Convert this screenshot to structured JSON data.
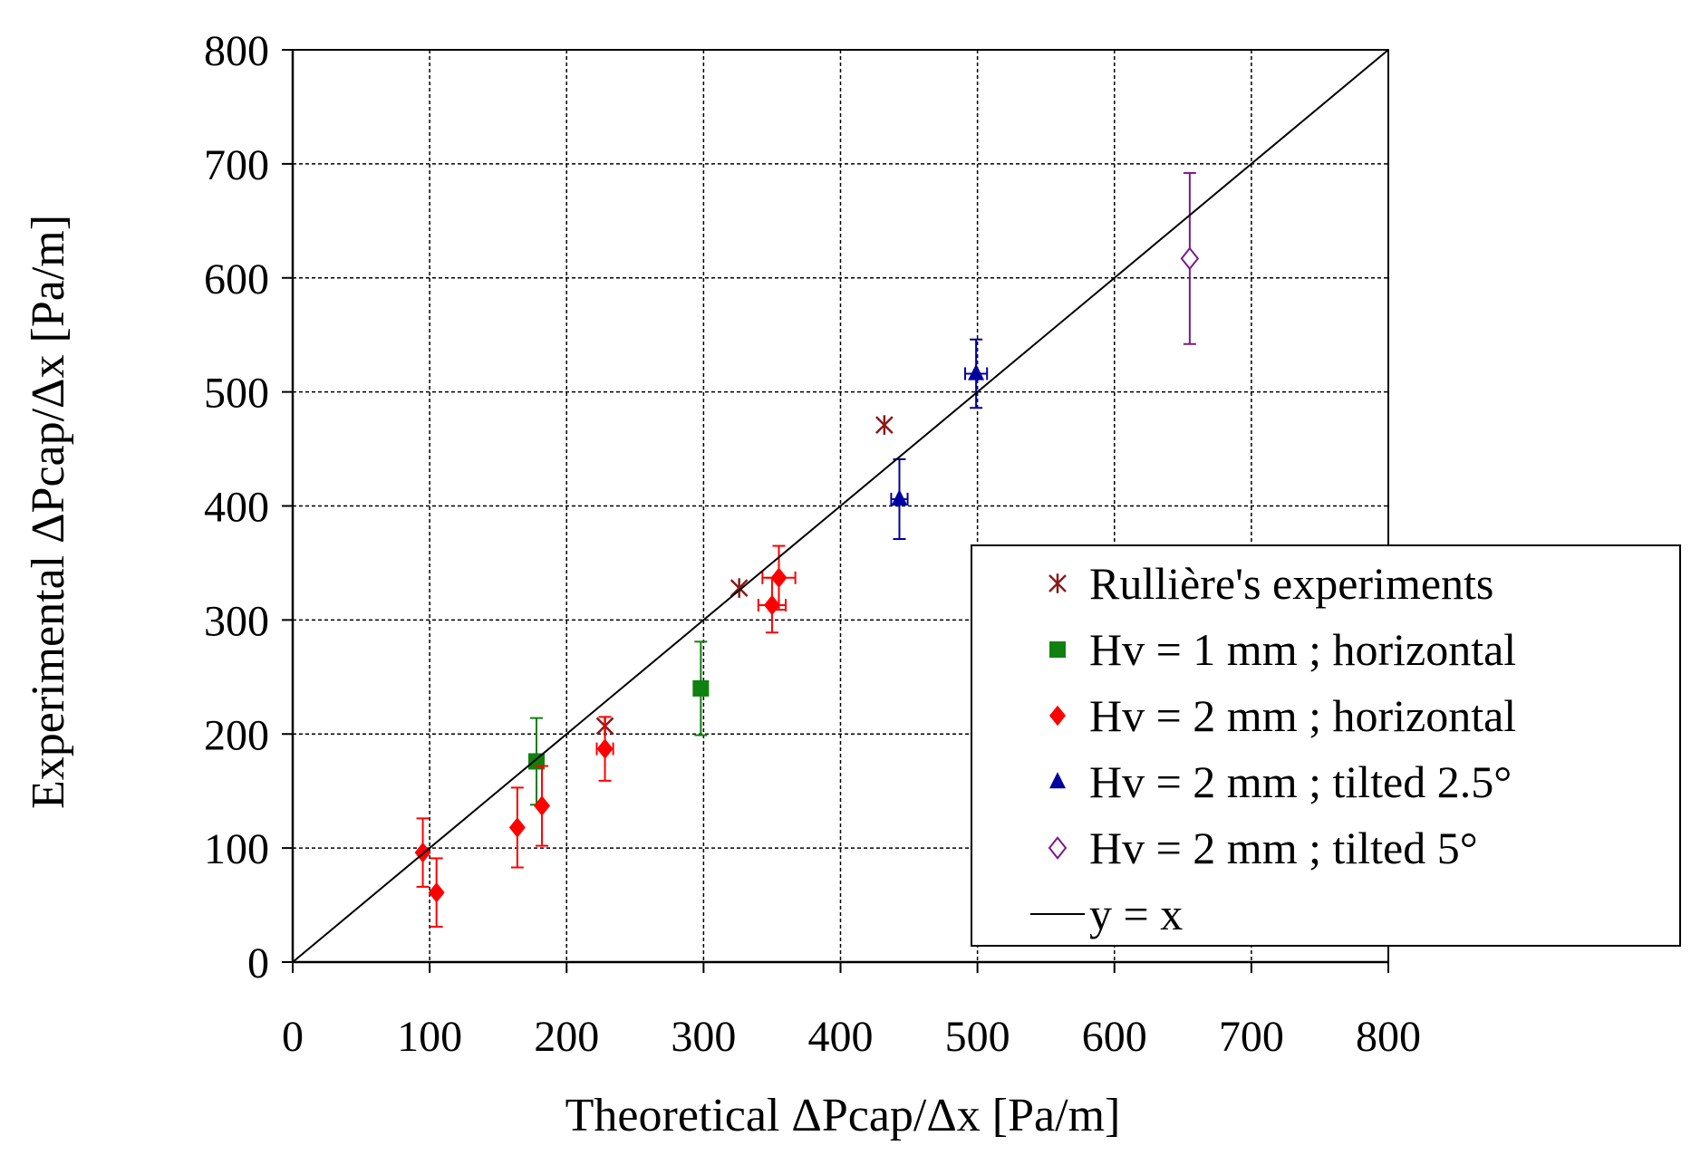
{
  "chart_data": {
    "type": "scatter",
    "title": "",
    "xlabel": "Theoretical ΔPcap/Δx [Pa/m]",
    "ylabel": "Experimental ΔPcap/Δx [Pa/m]",
    "xlim": [
      0,
      800
    ],
    "ylim": [
      0,
      800
    ],
    "x_ticks": [
      "0",
      "100",
      "200",
      "300",
      "400",
      "500",
      "600",
      "700",
      "800"
    ],
    "y_ticks": [
      "0",
      "100",
      "200",
      "300",
      "400",
      "500",
      "600",
      "700",
      "800"
    ],
    "grid": true,
    "legend_position": "right",
    "series": [
      {
        "name": "Rullière's experiments",
        "marker": "asterisk",
        "color": "#8b1a1a",
        "points": [
          {
            "x": 228,
            "y": 207
          },
          {
            "x": 326,
            "y": 328
          },
          {
            "x": 432,
            "y": 471
          }
        ]
      },
      {
        "name": "Hv = 1 mm ; horizontal",
        "marker": "square",
        "color": "#108010",
        "points": [
          {
            "x": 178,
            "y": 176,
            "yerr": 38,
            "xerr": 0
          },
          {
            "x": 298,
            "y": 240,
            "yerr": 41,
            "xerr": 5
          }
        ]
      },
      {
        "name": "Hv = 2 mm ; horizontal",
        "marker": "diamond",
        "color": "#ff0000",
        "points": [
          {
            "x": 95,
            "y": 96,
            "yerr": 30,
            "xerr": 0
          },
          {
            "x": 105,
            "y": 61,
            "yerr": 30,
            "xerr": 0
          },
          {
            "x": 164,
            "y": 118,
            "yerr": 35,
            "xerr": 0
          },
          {
            "x": 182,
            "y": 137,
            "yerr": 35,
            "xerr": 0
          },
          {
            "x": 228,
            "y": 187,
            "yerr": 28,
            "xerr": 6
          },
          {
            "x": 350,
            "y": 313,
            "yerr": 24,
            "xerr": 10
          },
          {
            "x": 355,
            "y": 337,
            "yerr": 28,
            "xerr": 12
          }
        ]
      },
      {
        "name": "Hv = 2 mm ; tilted 2.5°",
        "marker": "triangle",
        "color": "#0000a0",
        "points": [
          {
            "x": 443,
            "y": 406,
            "yerr": 35,
            "xerr": 6
          },
          {
            "x": 499,
            "y": 516,
            "yerr": 30,
            "xerr": 8
          }
        ]
      },
      {
        "name": "Hv = 2 mm ; tilted 5°",
        "marker": "diamond-open",
        "color": "#7a1a8a",
        "points": [
          {
            "x": 655,
            "y": 617,
            "yerr": 75,
            "xerr": 0
          }
        ]
      },
      {
        "name": "y = x",
        "marker": "line",
        "color": "#000000",
        "points": [
          {
            "x": 0,
            "y": 0
          },
          {
            "x": 800,
            "y": 800
          }
        ]
      }
    ]
  }
}
